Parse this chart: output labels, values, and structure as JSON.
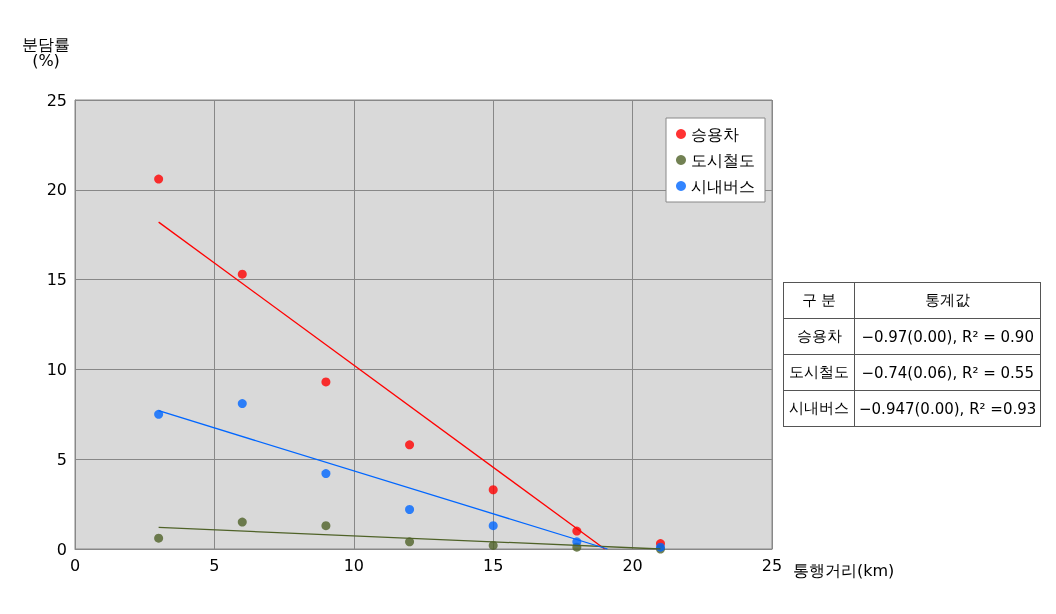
{
  "chart_data": {
    "type": "scatter",
    "ylabel": "분담률 (%)",
    "xlabel": "통행거리(km)",
    "xlim": [
      0,
      25
    ],
    "xticks": [
      0,
      5,
      10,
      15,
      20,
      25
    ],
    "ylim": [
      0,
      25
    ],
    "yticks": [
      0,
      5,
      10,
      15,
      20,
      25
    ],
    "grid": true,
    "legend": "top right",
    "marker": "circle",
    "series": [
      {
        "name": "승용차",
        "color": "#ff0000",
        "x": [
          3,
          6,
          9,
          12,
          15,
          18,
          21
        ],
        "values": [
          20.6,
          15.3,
          9.3,
          5.8,
          3.3,
          1.0,
          0.3
        ]
      },
      {
        "name": "도시철도",
        "color": "#4f6228",
        "x": [
          3,
          6,
          9,
          12,
          15,
          18,
          21
        ],
        "values": [
          0.6,
          1.5,
          1.3,
          0.4,
          0.2,
          0.1,
          0.0
        ]
      },
      {
        "name": "시내버스",
        "color": "#0066ff",
        "x": [
          3,
          6,
          9,
          12,
          15,
          18,
          21
        ],
        "values": [
          7.5,
          8.1,
          4.2,
          2.2,
          1.3,
          0.4,
          0.1
        ]
      },
      {
        "type": "line",
        "marker": "none",
        "color": "#ff0000",
        "x": [
          3,
          19
        ],
        "values": [
          18.2,
          0
        ]
      },
      {
        "type": "line",
        "marker": "none",
        "color": "#4f6228",
        "x": [
          3,
          21
        ],
        "values": [
          1.2,
          0
        ]
      },
      {
        "type": "line",
        "marker": "none",
        "color": "#0066ff",
        "x": [
          3,
          19.1
        ],
        "values": [
          7.7,
          0
        ]
      }
    ],
    "annotations": [
      "구 분",
      "통계값",
      "승용차",
      "−0.97(0.00), R² = 0.90",
      "도시철도",
      "−0.74(0.06), R² = 0.55",
      "시내버스",
      "−0.947(0.00), R² =0.93"
    ]
  }
}
